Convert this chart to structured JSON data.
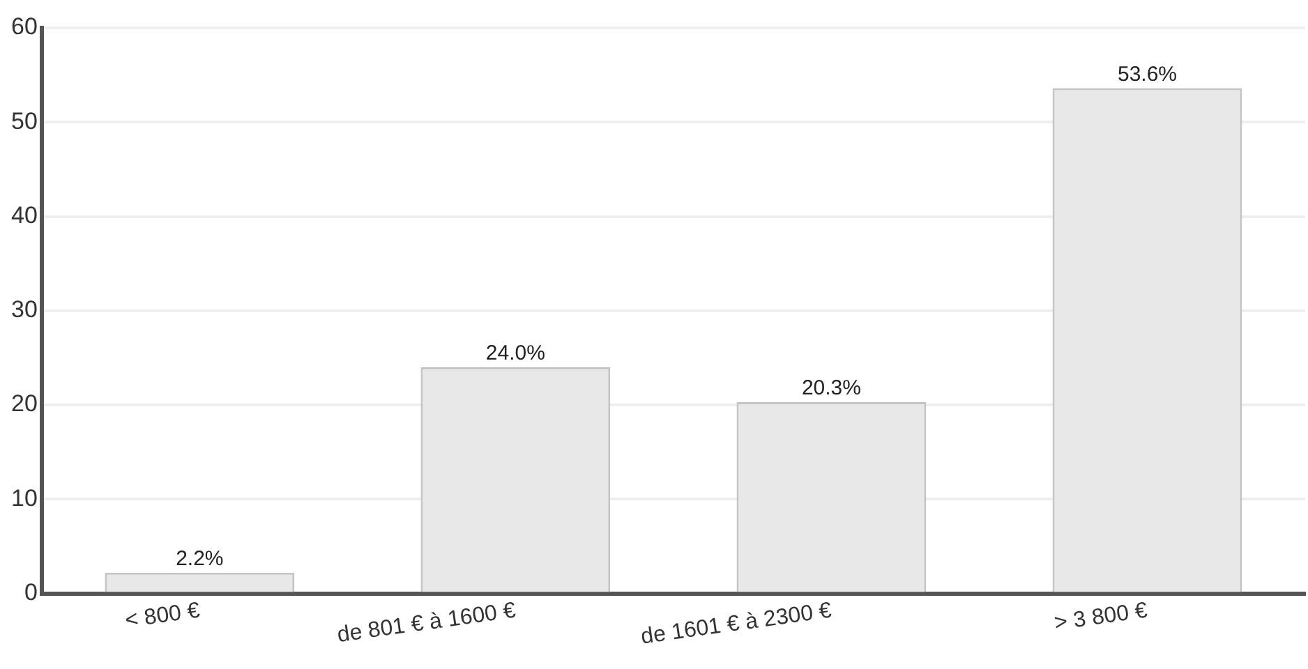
{
  "chart_data": {
    "type": "bar",
    "categories": [
      "< 800 €",
      "de 801 € à 1600 €",
      "de 1601 € à 2300 €",
      "> 3 800 €"
    ],
    "values": [
      2.2,
      24.0,
      20.3,
      53.6
    ],
    "value_labels": [
      "2.2%",
      "24.0%",
      "20.3%",
      "53.6%"
    ],
    "color": "#e8e8e8",
    "ylim": [
      0,
      60
    ],
    "yticks": [
      0,
      10,
      20,
      30,
      40,
      50,
      60
    ],
    "grid": "y",
    "legend": false
  }
}
